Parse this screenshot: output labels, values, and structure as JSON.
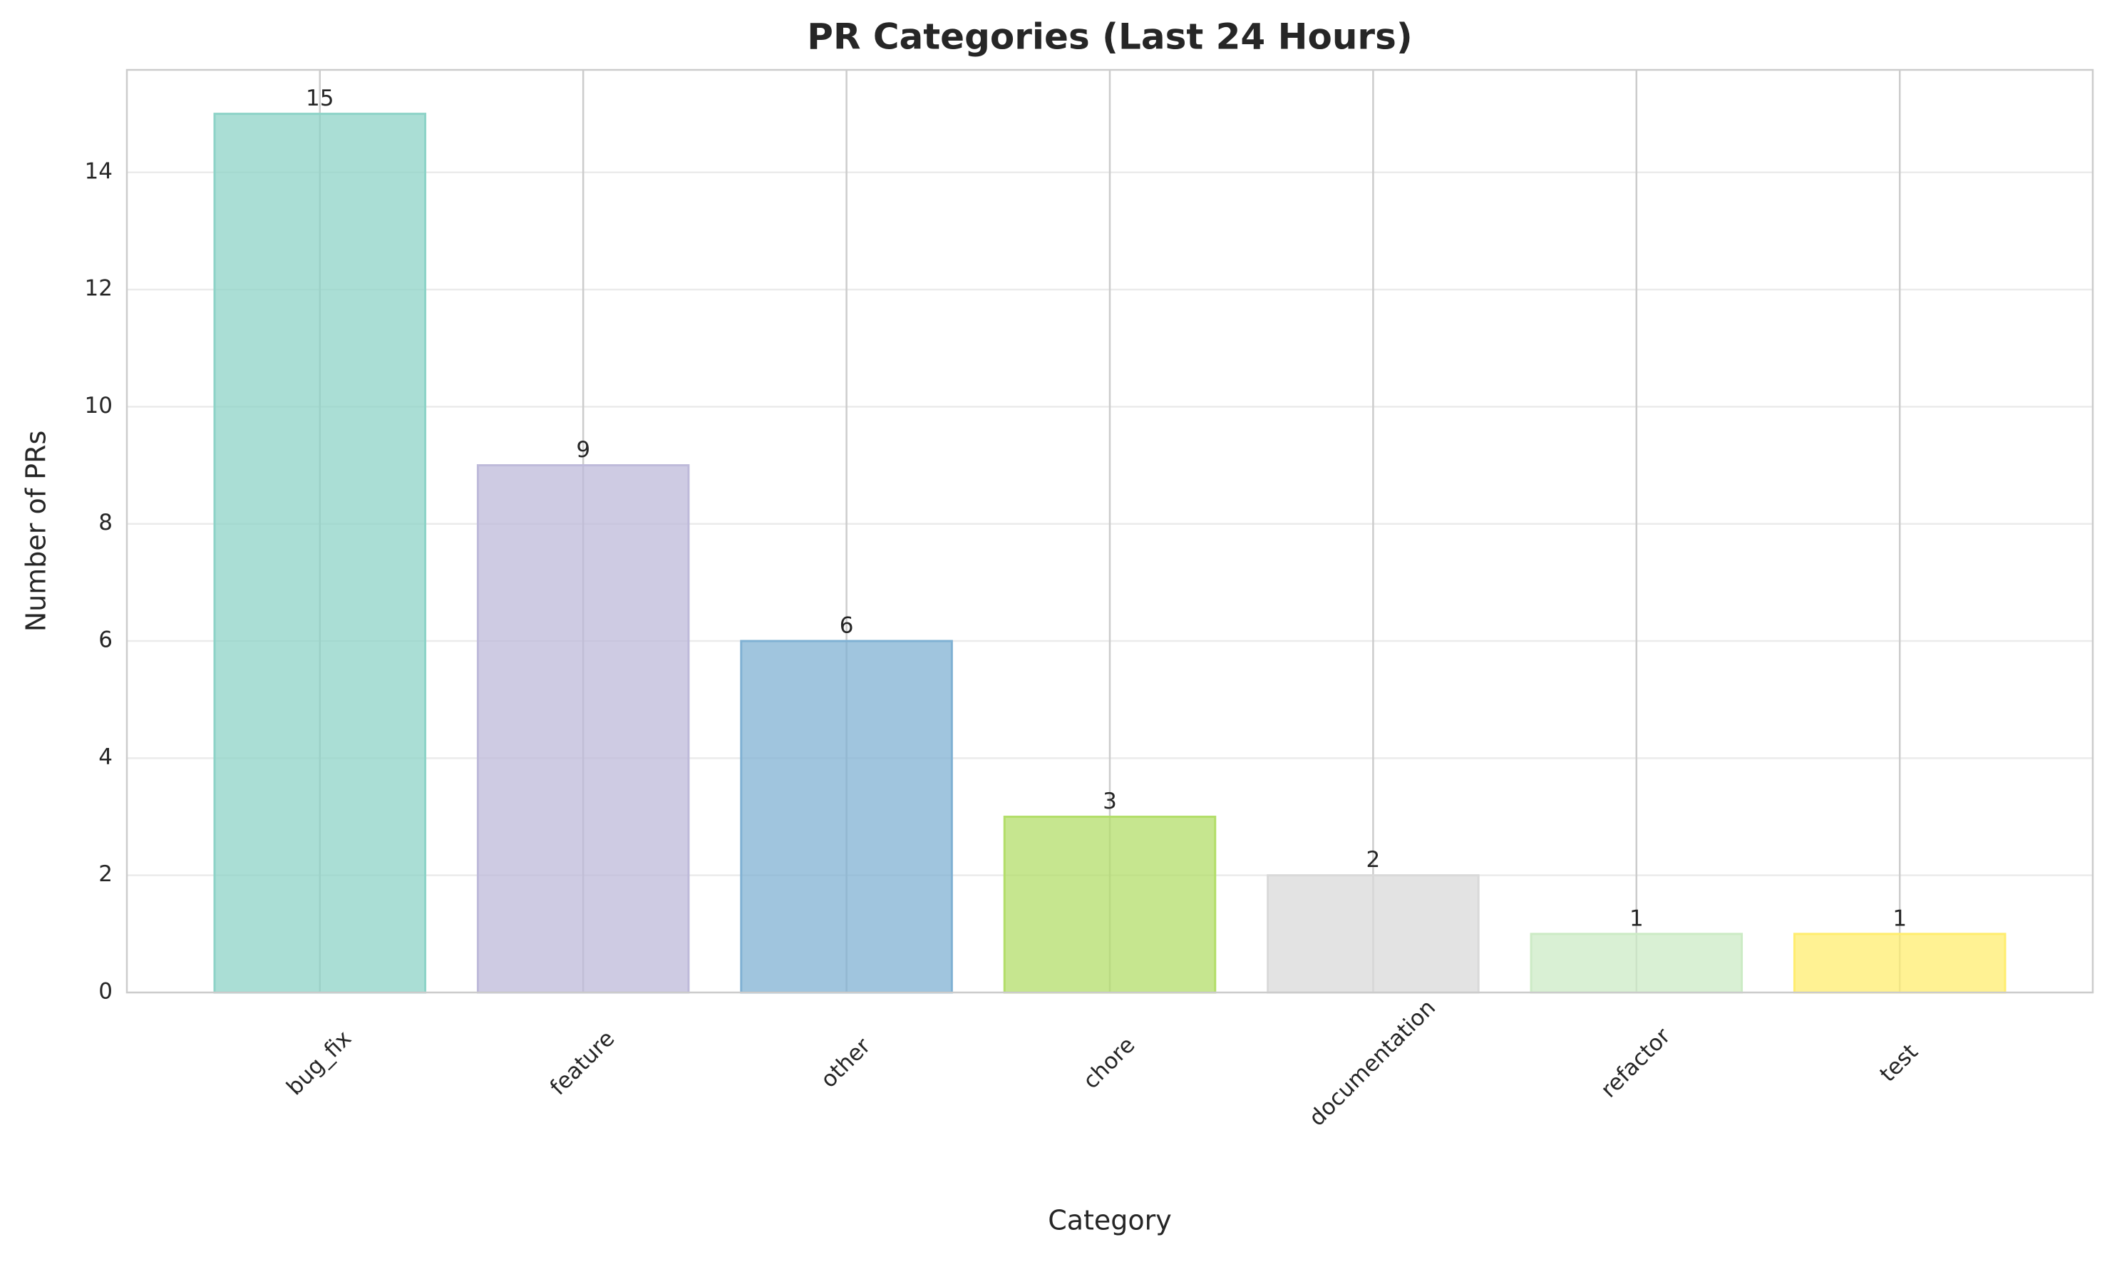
{
  "chart_data": {
    "type": "bar",
    "title": "PR Categories (Last 24 Hours)",
    "x_label": "Category",
    "y_label": "Number of PRs",
    "categories": [
      "bug_fix",
      "feature",
      "other",
      "chore",
      "documentation",
      "refactor",
      "test"
    ],
    "values": [
      15,
      9,
      6,
      3,
      2,
      1,
      1
    ],
    "colors": [
      "#8dd3c7",
      "#bebada",
      "#80b1d3",
      "#b3de69",
      "#d9d9d9",
      "#ccebc5",
      "#ffed6f"
    ],
    "ylim": [
      0,
      15.75
    ],
    "yticks": [
      0,
      2,
      4,
      6,
      8,
      10,
      12,
      14
    ],
    "grid": true
  }
}
